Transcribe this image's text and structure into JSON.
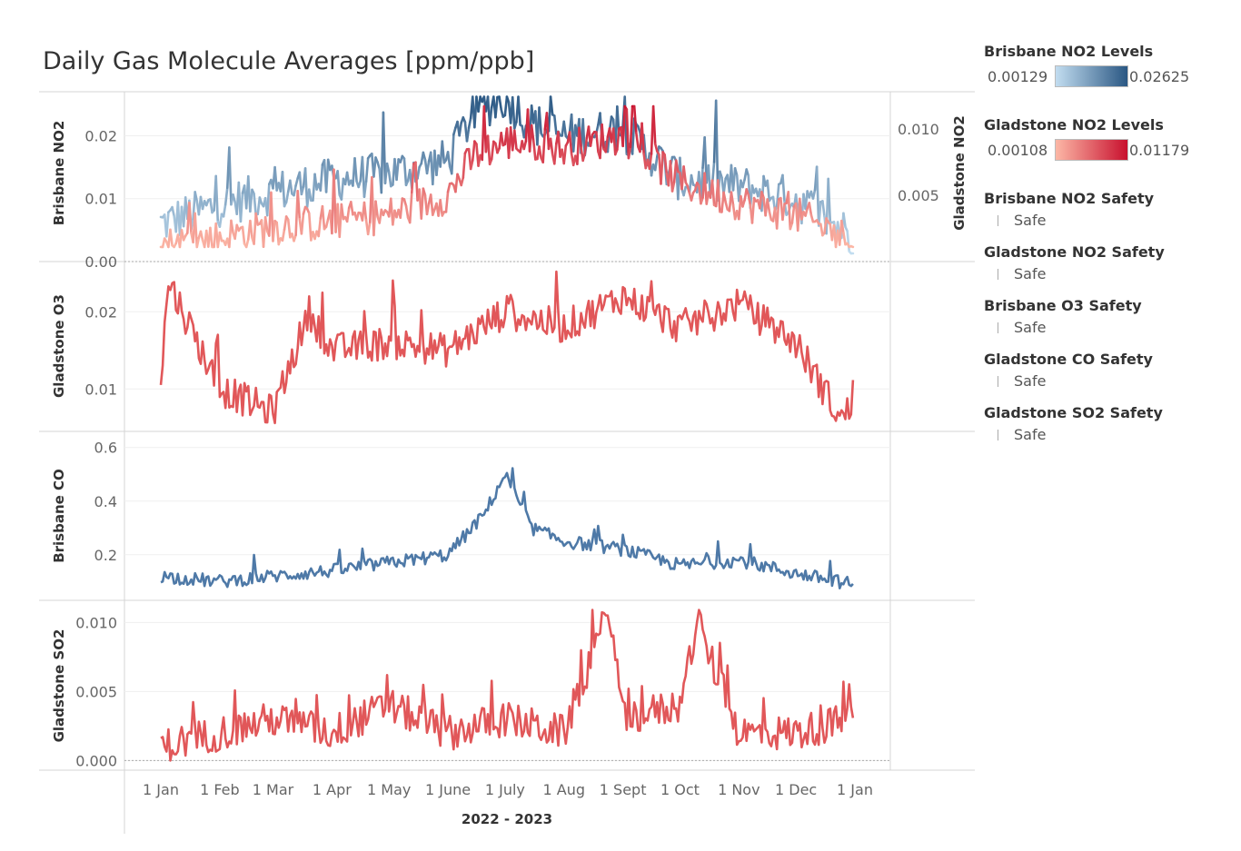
{
  "title": "Daily Gas Molecule Averages [ppm/ppb]",
  "x_axis": {
    "title": "2022 - 2023",
    "ticks": [
      "1 Jan",
      "1 Feb",
      "1 Mar",
      "1 Apr",
      "1 May",
      "1 June",
      "1 July",
      "1 Aug",
      "1 Sept",
      "1 Oct",
      "1 Nov",
      "1 Dec",
      "1 Jan"
    ]
  },
  "legends": {
    "brisbane_no2": {
      "title": "Brisbane NO2 Levels",
      "min": "0.00129",
      "max": "0.02625",
      "color_low": "#c2ddf0",
      "color_high": "#2a5783"
    },
    "gladstone_no2": {
      "title": "Gladstone NO2 Levels",
      "min": "0.00108",
      "max": "0.01179",
      "color_low": "#fcb7a6",
      "color_high": "#c8102e"
    },
    "safety": [
      {
        "title": "Brisbane NO2 Safety",
        "label": "Safe"
      },
      {
        "title": "Gladstone NO2 Safety",
        "label": "Safe"
      },
      {
        "title": "Brisbane O3 Safety",
        "label": "Safe"
      },
      {
        "title": "Gladstone CO Safety",
        "label": "Safe"
      },
      {
        "title": "Gladstone SO2 Safety",
        "label": "Safe"
      }
    ]
  },
  "colors": {
    "blue": "#4e79a7",
    "red": "#e15759"
  },
  "chart_data": [
    {
      "type": "line",
      "pane": "no2",
      "ylabel": "Brisbane NO2",
      "right_ylabel": "Gladstone NO2",
      "yticks": [
        "0.00",
        "0.01",
        "0.02"
      ],
      "ylim": [
        0,
        0.027
      ],
      "right_yticks": [
        "0.005",
        "0.010"
      ],
      "right_ylim": [
        0,
        0.0128
      ],
      "series": [
        {
          "x": [
            "1 Jan",
            "1 Feb",
            "1 Mar",
            "1 Apr",
            "1 May",
            "1 June",
            "15 June",
            "1 July",
            "15 July",
            "1 Aug",
            "1 Sept",
            "1 Oct",
            "1 Nov",
            "1 Dec",
            "31 Dec"
          ],
          "y": [
            0.006,
            0.009,
            0.011,
            0.013,
            0.014,
            0.016,
            0.024,
            0.026,
            0.022,
            0.02,
            0.021,
            0.013,
            0.012,
            0.01,
            0.004
          ]
        },
        {
          "x": [
            "1 Jan",
            "1 Feb",
            "1 Mar",
            "1 Apr",
            "1 May",
            "1 June",
            "15 June",
            "1 July",
            "15 July",
            "1 Aug",
            "1 Sept",
            "1 Oct",
            "1 Nov",
            "1 Dec",
            "31 Dec"
          ],
          "y": [
            0.0012,
            0.0018,
            0.0026,
            0.003,
            0.0035,
            0.005,
            0.008,
            0.009,
            0.009,
            0.0085,
            0.0095,
            0.006,
            0.0045,
            0.0035,
            0.0015
          ]
        }
      ]
    },
    {
      "type": "line",
      "pane": "o3",
      "ylabel": "Gladstone O3",
      "yticks": [
        "0.01",
        "0.02"
      ],
      "ylim": [
        0.0045,
        0.0265
      ],
      "series": [
        {
          "x": [
            "1 Jan",
            "5 Jan",
            "1 Feb",
            "1 Mar",
            "20 Mar",
            "1 Apr",
            "1 May",
            "1 June",
            "1 July",
            "1 Aug",
            "1 Sept",
            "1 Oct",
            "1 Nov",
            "1 Dec",
            "25 Dec",
            "31 Jan"
          ],
          "y": [
            0.011,
            0.024,
            0.01,
            0.007,
            0.02,
            0.015,
            0.016,
            0.015,
            0.02,
            0.018,
            0.022,
            0.018,
            0.021,
            0.016,
            0.006,
            0.008
          ]
        }
      ]
    },
    {
      "type": "line",
      "pane": "co",
      "ylabel": "Brisbane CO",
      "yticks": [
        "0.2",
        "0.4",
        "0.6"
      ],
      "ylim": [
        0.03,
        0.66
      ],
      "series": [
        {
          "x": [
            "1 Jan",
            "1 Feb",
            "1 Mar",
            "1 Apr",
            "1 May",
            "1 June",
            "20 June",
            "1 July",
            "15 July",
            "1 Aug",
            "1 Sept",
            "1 Oct",
            "1 Nov",
            "1 Dec",
            "31 Dec"
          ],
          "y": [
            0.12,
            0.1,
            0.12,
            0.14,
            0.17,
            0.2,
            0.35,
            0.5,
            0.3,
            0.25,
            0.22,
            0.16,
            0.18,
            0.13,
            0.09
          ]
        }
      ]
    },
    {
      "type": "line",
      "pane": "so2",
      "ylabel": "Gladstone SO2",
      "yticks": [
        "0.000",
        "0.005",
        "0.010"
      ],
      "ylim": [
        -0.0007,
        0.0116
      ],
      "series": [
        {
          "x": [
            "1 Jan",
            "1 Feb",
            "1 Mar",
            "1 Apr",
            "1 May",
            "1 June",
            "1 July",
            "1 Aug",
            "25 Aug",
            "1 Sept",
            "1 Oct",
            "10 Oct",
            "1 Nov",
            "1 Dec",
            "31 Dec"
          ],
          "y": [
            0.001,
            0.002,
            0.003,
            0.002,
            0.004,
            0.002,
            0.003,
            0.002,
            0.011,
            0.003,
            0.004,
            0.01,
            0.002,
            0.002,
            0.003
          ]
        }
      ]
    }
  ]
}
